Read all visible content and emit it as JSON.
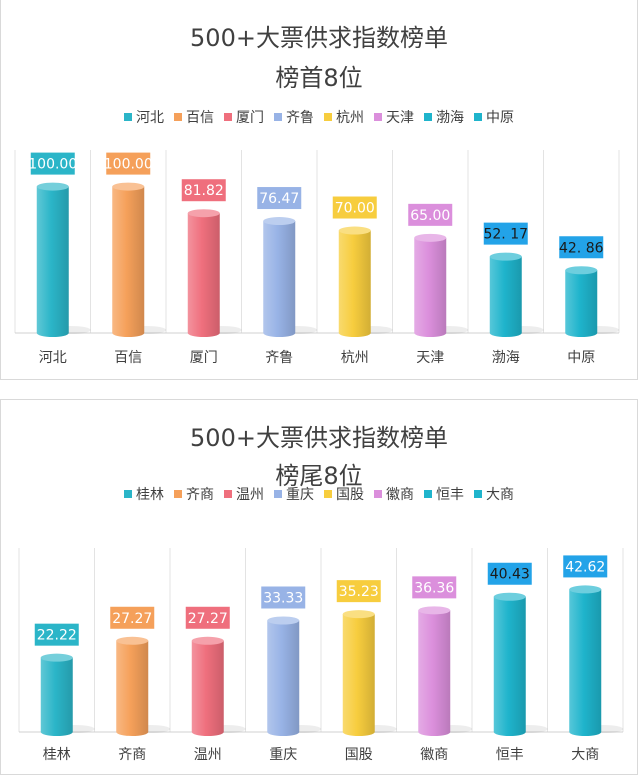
{
  "chart_data": [
    {
      "type": "bar",
      "title": "500+大票供求指数榜单",
      "subtitle": "榜首8位",
      "categories": [
        "河北",
        "百信",
        "厦门",
        "齐鲁",
        "杭州",
        "天津",
        "渤海",
        "中原"
      ],
      "values": [
        100.0,
        100.0,
        81.82,
        76.47,
        70.0,
        65.0,
        52.17,
        42.86
      ],
      "value_labels": [
        "100.00",
        "100.00",
        "81.82",
        "76.47",
        "70.00",
        "65.00",
        "52. 17",
        "42. 86"
      ],
      "colors": [
        "#2bb5c8",
        "#f5a05a",
        "#ef6f7d",
        "#98b3e6",
        "#f7cd3e",
        "#db8fdc",
        "#1fb4cc",
        "#1fb4cc"
      ],
      "label_text_colors": [
        "#ffffff",
        "#ffffff",
        "#ffffff",
        "#ffffff",
        "#ffffff",
        "#ffffff",
        "#1a1a1a",
        "#1a1a1a"
      ],
      "label_bg_colors": [
        "#2bb5c8",
        "#f5a05a",
        "#ef6f7d",
        "#98b3e6",
        "#f7cd3e",
        "#db8fdc",
        "#23a3e8",
        "#23a3e8"
      ],
      "ylim": [
        0,
        125
      ],
      "grid": "vertical",
      "legend_position": "top"
    },
    {
      "type": "bar",
      "title": "500+大票供求指数榜单",
      "subtitle": "榜尾8位",
      "categories": [
        "桂林",
        "齐商",
        "温州",
        "重庆",
        "国股",
        "徽商",
        "恒丰",
        "大商"
      ],
      "values": [
        22.22,
        27.27,
        27.27,
        33.33,
        35.23,
        36.36,
        40.43,
        42.62
      ],
      "value_labels": [
        "22.22",
        "27.27",
        "27.27",
        "33.33",
        "35.23",
        "36.36",
        "40.43",
        "42.62"
      ],
      "colors": [
        "#2bb5c8",
        "#f5a05a",
        "#ef6f7d",
        "#98b3e6",
        "#f7cd3e",
        "#db8fdc",
        "#1fb4cc",
        "#1fb4cc"
      ],
      "label_text_colors": [
        "#ffffff",
        "#ffffff",
        "#ffffff",
        "#ffffff",
        "#ffffff",
        "#ffffff",
        "#1a1a1a",
        "#ffffff"
      ],
      "label_bg_colors": [
        "#2bb5c8",
        "#f5a05a",
        "#ef6f7d",
        "#98b3e6",
        "#f7cd3e",
        "#db8fdc",
        "#23a3e8",
        "#23a3e8"
      ],
      "ylim": [
        0,
        55
      ],
      "grid": "vertical",
      "legend_position": "top"
    }
  ]
}
